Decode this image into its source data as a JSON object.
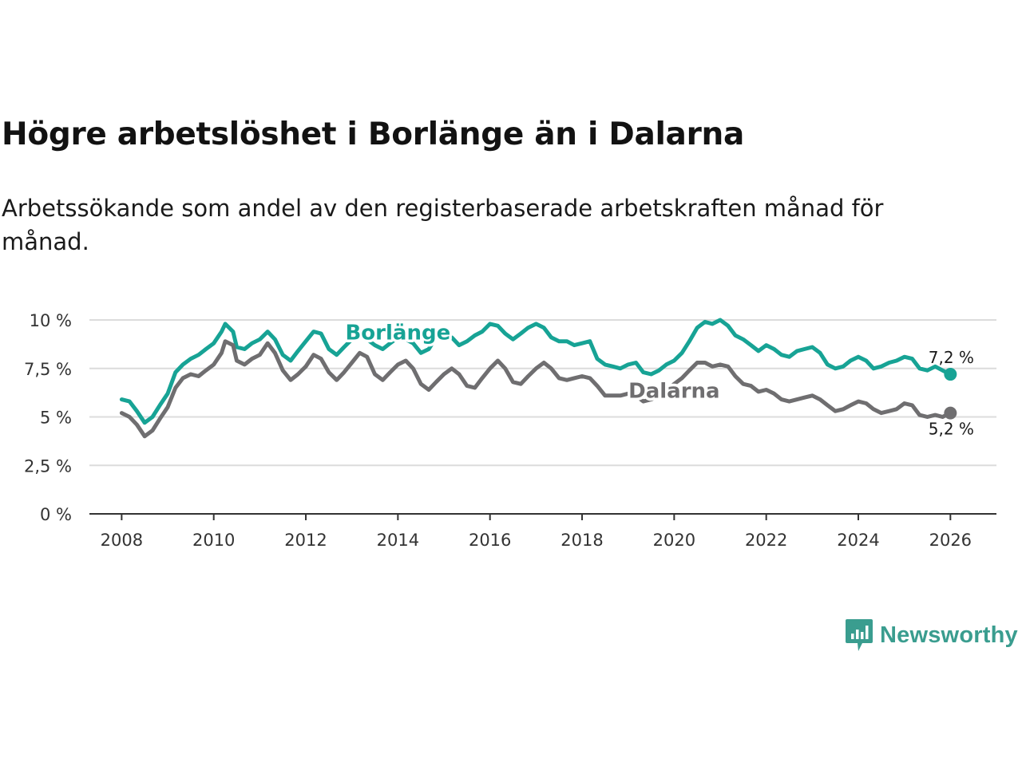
{
  "header": {
    "title": "Högre arbetslöshet i Borlänge än i Dalarna",
    "subtitle": "Arbetssökande som andel av den registerbaserade arbetskraften månad för månad."
  },
  "logo": {
    "text": "Newsworthy",
    "icon": "chart-speech-bubble-icon",
    "color": "#3a9d8f"
  },
  "chart_data": {
    "type": "line",
    "title": "Högre arbetslöshet i Borlänge än i Dalarna",
    "xlabel": "",
    "ylabel": "",
    "xlim": [
      2007.3,
      2027.0
    ],
    "ylim": [
      0,
      10
    ],
    "grid": true,
    "x_ticks": [
      2008,
      2010,
      2012,
      2014,
      2016,
      2018,
      2020,
      2022,
      2024,
      2026
    ],
    "x_tick_labels": [
      "2008",
      "2010",
      "2012",
      "2014",
      "2016",
      "2018",
      "2020",
      "2022",
      "2024",
      "2026"
    ],
    "y_ticks": [
      0,
      2.5,
      5,
      7.5,
      10
    ],
    "y_tick_labels": [
      "0 %",
      "2,5 %",
      "5 %",
      "7,5 %",
      "10 %"
    ],
    "series": [
      {
        "name": "Borlänge",
        "color": "#17a395",
        "end_label": "7,2 %",
        "points": [
          [
            2008.0,
            5.9
          ],
          [
            2008.17,
            5.8
          ],
          [
            2008.33,
            5.3
          ],
          [
            2008.5,
            4.7
          ],
          [
            2008.67,
            5.0
          ],
          [
            2008.83,
            5.6
          ],
          [
            2009.0,
            6.2
          ],
          [
            2009.17,
            7.3
          ],
          [
            2009.33,
            7.7
          ],
          [
            2009.5,
            8.0
          ],
          [
            2009.67,
            8.2
          ],
          [
            2009.83,
            8.5
          ],
          [
            2010.0,
            8.8
          ],
          [
            2010.17,
            9.4
          ],
          [
            2010.25,
            9.8
          ],
          [
            2010.42,
            9.4
          ],
          [
            2010.5,
            8.6
          ],
          [
            2010.67,
            8.5
          ],
          [
            2010.83,
            8.8
          ],
          [
            2011.0,
            9.0
          ],
          [
            2011.17,
            9.4
          ],
          [
            2011.33,
            9.0
          ],
          [
            2011.5,
            8.2
          ],
          [
            2011.67,
            7.9
          ],
          [
            2011.83,
            8.4
          ],
          [
            2012.0,
            8.9
          ],
          [
            2012.17,
            9.4
          ],
          [
            2012.33,
            9.3
          ],
          [
            2012.5,
            8.5
          ],
          [
            2012.67,
            8.2
          ],
          [
            2012.83,
            8.6
          ],
          [
            2013.0,
            9.0
          ],
          [
            2013.17,
            9.2
          ],
          [
            2013.33,
            9.0
          ],
          [
            2013.5,
            8.7
          ],
          [
            2013.67,
            8.5
          ],
          [
            2013.83,
            8.8
          ],
          [
            2014.0,
            9.1
          ],
          [
            2014.17,
            9.0
          ],
          [
            2014.33,
            8.8
          ],
          [
            2014.5,
            8.3
          ],
          [
            2014.67,
            8.5
          ],
          [
            2014.83,
            9.1
          ],
          [
            2015.0,
            9.4
          ],
          [
            2015.17,
            9.1
          ],
          [
            2015.33,
            8.7
          ],
          [
            2015.5,
            8.9
          ],
          [
            2015.67,
            9.2
          ],
          [
            2015.83,
            9.4
          ],
          [
            2016.0,
            9.8
          ],
          [
            2016.17,
            9.7
          ],
          [
            2016.33,
            9.3
          ],
          [
            2016.5,
            9.0
          ],
          [
            2016.67,
            9.3
          ],
          [
            2016.83,
            9.6
          ],
          [
            2017.0,
            9.8
          ],
          [
            2017.17,
            9.6
          ],
          [
            2017.33,
            9.1
          ],
          [
            2017.5,
            8.9
          ],
          [
            2017.67,
            8.9
          ],
          [
            2017.83,
            8.7
          ],
          [
            2018.0,
            8.8
          ],
          [
            2018.17,
            8.9
          ],
          [
            2018.33,
            8.0
          ],
          [
            2018.5,
            7.7
          ],
          [
            2018.67,
            7.6
          ],
          [
            2018.83,
            7.5
          ],
          [
            2019.0,
            7.7
          ],
          [
            2019.17,
            7.8
          ],
          [
            2019.33,
            7.3
          ],
          [
            2019.5,
            7.2
          ],
          [
            2019.67,
            7.4
          ],
          [
            2019.83,
            7.7
          ],
          [
            2020.0,
            7.9
          ],
          [
            2020.17,
            8.3
          ],
          [
            2020.33,
            8.9
          ],
          [
            2020.5,
            9.6
          ],
          [
            2020.67,
            9.9
          ],
          [
            2020.83,
            9.8
          ],
          [
            2021.0,
            10.0
          ],
          [
            2021.17,
            9.7
          ],
          [
            2021.33,
            9.2
          ],
          [
            2021.5,
            9.0
          ],
          [
            2021.67,
            8.7
          ],
          [
            2021.83,
            8.4
          ],
          [
            2022.0,
            8.7
          ],
          [
            2022.17,
            8.5
          ],
          [
            2022.33,
            8.2
          ],
          [
            2022.5,
            8.1
          ],
          [
            2022.67,
            8.4
          ],
          [
            2022.83,
            8.5
          ],
          [
            2023.0,
            8.6
          ],
          [
            2023.17,
            8.3
          ],
          [
            2023.33,
            7.7
          ],
          [
            2023.5,
            7.5
          ],
          [
            2023.67,
            7.6
          ],
          [
            2023.83,
            7.9
          ],
          [
            2024.0,
            8.1
          ],
          [
            2024.17,
            7.9
          ],
          [
            2024.33,
            7.5
          ],
          [
            2024.5,
            7.6
          ],
          [
            2024.67,
            7.8
          ],
          [
            2024.83,
            7.9
          ],
          [
            2025.0,
            8.1
          ],
          [
            2025.17,
            8.0
          ],
          [
            2025.33,
            7.5
          ],
          [
            2025.5,
            7.4
          ],
          [
            2025.67,
            7.6
          ],
          [
            2025.83,
            7.4
          ],
          [
            2026.0,
            7.2
          ]
        ]
      },
      {
        "name": "Dalarna",
        "color": "#6f6e70",
        "end_label": "5,2 %",
        "points": [
          [
            2008.0,
            5.2
          ],
          [
            2008.17,
            5.0
          ],
          [
            2008.33,
            4.6
          ],
          [
            2008.5,
            4.0
          ],
          [
            2008.67,
            4.3
          ],
          [
            2008.83,
            4.9
          ],
          [
            2009.0,
            5.5
          ],
          [
            2009.17,
            6.5
          ],
          [
            2009.33,
            7.0
          ],
          [
            2009.5,
            7.2
          ],
          [
            2009.67,
            7.1
          ],
          [
            2009.83,
            7.4
          ],
          [
            2010.0,
            7.7
          ],
          [
            2010.17,
            8.3
          ],
          [
            2010.25,
            8.9
          ],
          [
            2010.42,
            8.7
          ],
          [
            2010.5,
            7.9
          ],
          [
            2010.67,
            7.7
          ],
          [
            2010.83,
            8.0
          ],
          [
            2011.0,
            8.2
          ],
          [
            2011.17,
            8.8
          ],
          [
            2011.33,
            8.3
          ],
          [
            2011.5,
            7.4
          ],
          [
            2011.67,
            6.9
          ],
          [
            2011.83,
            7.2
          ],
          [
            2012.0,
            7.6
          ],
          [
            2012.17,
            8.2
          ],
          [
            2012.33,
            8.0
          ],
          [
            2012.5,
            7.3
          ],
          [
            2012.67,
            6.9
          ],
          [
            2012.83,
            7.3
          ],
          [
            2013.0,
            7.8
          ],
          [
            2013.17,
            8.3
          ],
          [
            2013.33,
            8.1
          ],
          [
            2013.5,
            7.2
          ],
          [
            2013.67,
            6.9
          ],
          [
            2013.83,
            7.3
          ],
          [
            2014.0,
            7.7
          ],
          [
            2014.17,
            7.9
          ],
          [
            2014.33,
            7.5
          ],
          [
            2014.5,
            6.7
          ],
          [
            2014.67,
            6.4
          ],
          [
            2014.83,
            6.8
          ],
          [
            2015.0,
            7.2
          ],
          [
            2015.17,
            7.5
          ],
          [
            2015.33,
            7.2
          ],
          [
            2015.5,
            6.6
          ],
          [
            2015.67,
            6.5
          ],
          [
            2015.83,
            7.0
          ],
          [
            2016.0,
            7.5
          ],
          [
            2016.17,
            7.9
          ],
          [
            2016.33,
            7.5
          ],
          [
            2016.5,
            6.8
          ],
          [
            2016.67,
            6.7
          ],
          [
            2016.83,
            7.1
          ],
          [
            2017.0,
            7.5
          ],
          [
            2017.17,
            7.8
          ],
          [
            2017.33,
            7.5
          ],
          [
            2017.5,
            7.0
          ],
          [
            2017.67,
            6.9
          ],
          [
            2017.83,
            7.0
          ],
          [
            2018.0,
            7.1
          ],
          [
            2018.17,
            7.0
          ],
          [
            2018.33,
            6.6
          ],
          [
            2018.5,
            6.1
          ],
          [
            2018.67,
            6.1
          ],
          [
            2018.83,
            6.1
          ],
          [
            2019.0,
            6.2
          ],
          [
            2019.17,
            6.1
          ],
          [
            2019.33,
            5.8
          ],
          [
            2019.5,
            5.9
          ],
          [
            2019.67,
            6.1
          ],
          [
            2019.83,
            6.3
          ],
          [
            2020.0,
            6.7
          ],
          [
            2020.17,
            7.0
          ],
          [
            2020.33,
            7.4
          ],
          [
            2020.5,
            7.8
          ],
          [
            2020.67,
            7.8
          ],
          [
            2020.83,
            7.6
          ],
          [
            2021.0,
            7.7
          ],
          [
            2021.17,
            7.6
          ],
          [
            2021.33,
            7.1
          ],
          [
            2021.5,
            6.7
          ],
          [
            2021.67,
            6.6
          ],
          [
            2021.83,
            6.3
          ],
          [
            2022.0,
            6.4
          ],
          [
            2022.17,
            6.2
          ],
          [
            2022.33,
            5.9
          ],
          [
            2022.5,
            5.8
          ],
          [
            2022.67,
            5.9
          ],
          [
            2022.83,
            6.0
          ],
          [
            2023.0,
            6.1
          ],
          [
            2023.17,
            5.9
          ],
          [
            2023.33,
            5.6
          ],
          [
            2023.5,
            5.3
          ],
          [
            2023.67,
            5.4
          ],
          [
            2023.83,
            5.6
          ],
          [
            2024.0,
            5.8
          ],
          [
            2024.17,
            5.7
          ],
          [
            2024.33,
            5.4
          ],
          [
            2024.5,
            5.2
          ],
          [
            2024.67,
            5.3
          ],
          [
            2024.83,
            5.4
          ],
          [
            2025.0,
            5.7
          ],
          [
            2025.17,
            5.6
          ],
          [
            2025.33,
            5.1
          ],
          [
            2025.5,
            5.0
          ],
          [
            2025.67,
            5.1
          ],
          [
            2025.83,
            5.0
          ],
          [
            2026.0,
            5.2
          ]
        ]
      }
    ],
    "series_label_positions": {
      "Borlänge": [
        2014.0,
        9.4
      ],
      "Dalarna": [
        2020.0,
        6.4
      ]
    }
  }
}
